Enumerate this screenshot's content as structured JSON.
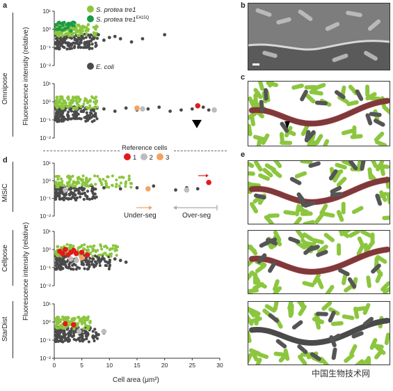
{
  "panels": {
    "a": "a",
    "b": "b",
    "c": "c",
    "d": "d",
    "e": "e"
  },
  "row_labels": {
    "omnipose": "Omnipose",
    "misic": "MiSiC",
    "cellpose": "Cellpose",
    "stardist": "StarDist"
  },
  "y_axis_label": "Fluorescence intensity (relative)",
  "x_axis_label": "Cell area (μm²)",
  "x_ticks": [
    "0",
    "5",
    "10",
    "15",
    "20",
    "25",
    "30"
  ],
  "y_ticks": [
    "10¹",
    "10⁰",
    "10⁻¹",
    "10⁻²"
  ],
  "legend": {
    "item1": "S. protea tre1",
    "item2": "S. protea tre1",
    "item2_sup": "E415Q",
    "item3": "E. coli",
    "colors": {
      "tre1": "#8cc63f",
      "tre1_mut": "#1a9a4a",
      "ecoli": "#4a4a4a"
    }
  },
  "reference_cells": {
    "title": "Reference cells",
    "labels": [
      "1",
      "2",
      "3"
    ],
    "colors": [
      "#e31a1c",
      "#bdbdbd",
      "#f4a261"
    ]
  },
  "annotations": {
    "under_seg": "Under-seg",
    "over_seg": "Over-seg"
  },
  "watermark": "中国生物技术网",
  "chart_data": [
    {
      "type": "scatter",
      "panel": "a-top",
      "xlabel": "",
      "ylabel": "Fluorescence intensity (relative)",
      "xlim": [
        0,
        30
      ],
      "ylim": [
        0.01,
        10
      ],
      "yscale": "log",
      "series": [
        {
          "name": "S. protea tre1",
          "x": [
            0.5,
            1,
            1.5,
            2,
            2.5,
            3,
            3.5,
            4
          ],
          "y": [
            1.2,
            1.5,
            1.1,
            1.3,
            1.0,
            1.2,
            1.1,
            0.9
          ]
        },
        {
          "name": "S. protea tre1E415Q",
          "x": [
            0.5,
            1,
            1.5,
            2,
            2.5,
            3
          ],
          "y": [
            1.0,
            1.3,
            0.9,
            1.1,
            1.2,
            0.8
          ]
        },
        {
          "name": "E. coli",
          "x": [
            1,
            2,
            3,
            4,
            5,
            6,
            7,
            8,
            9,
            10,
            11,
            12,
            14,
            16,
            20
          ],
          "y": [
            0.2,
            0.3,
            0.15,
            0.25,
            0.4,
            0.2,
            0.3,
            0.5,
            0.25,
            0.35,
            0.4,
            0.3,
            0.2,
            0.3,
            0.5
          ]
        }
      ]
    },
    {
      "type": "scatter",
      "panel": "a-bottom",
      "xlim": [
        0,
        30
      ],
      "ylim": [
        0.01,
        10
      ],
      "yscale": "log",
      "series": [
        {
          "name": "E. coli",
          "x": [
            1,
            3,
            5,
            7,
            9,
            11,
            13,
            15,
            17,
            19,
            21,
            23,
            25,
            27,
            28,
            29
          ],
          "y": [
            0.3,
            0.4,
            0.3,
            0.35,
            0.4,
            0.3,
            0.45,
            0.35,
            0.4,
            0.5,
            0.3,
            0.35,
            0.4,
            0.5,
            0.35,
            0.4
          ]
        },
        {
          "name": "Reference 1",
          "x": [
            26
          ],
          "y": [
            0.6
          ]
        },
        {
          "name": "Reference 2",
          "x": [
            16,
            29
          ],
          "y": [
            0.4,
            0.35
          ]
        },
        {
          "name": "Reference 3",
          "x": [
            15
          ],
          "y": [
            0.45
          ]
        }
      ]
    },
    {
      "type": "scatter",
      "panel": "d-misic",
      "xlim": [
        0,
        30
      ],
      "ylim": [
        0.01,
        10
      ],
      "yscale": "log",
      "series": [
        {
          "name": "E. coli",
          "x": [
            1,
            3,
            5,
            7,
            9,
            12,
            15,
            18,
            22,
            24,
            26
          ],
          "y": [
            0.3,
            0.35,
            0.4,
            0.3,
            0.4,
            0.35,
            0.4,
            0.5,
            0.3,
            0.4,
            0.35
          ]
        },
        {
          "name": "Reference 1",
          "x": [
            28
          ],
          "y": [
            0.8
          ]
        },
        {
          "name": "Reference 2",
          "x": [
            2,
            24
          ],
          "y": [
            0.3,
            0.3
          ]
        },
        {
          "name": "Reference 3",
          "x": [
            17
          ],
          "y": [
            0.35
          ]
        }
      ]
    },
    {
      "type": "scatter",
      "panel": "d-cellpose",
      "xlim": [
        0,
        30
      ],
      "ylim": [
        0.01,
        10
      ],
      "yscale": "log",
      "series": [
        {
          "name": "E. coli",
          "x": [
            1,
            2,
            3,
            4,
            5,
            6,
            7,
            8,
            9,
            10,
            11,
            12,
            13
          ],
          "y": [
            0.3,
            0.4,
            0.2,
            0.3,
            0.35,
            0.2,
            0.3,
            0.25,
            0.3,
            0.2,
            0.3,
            0.25,
            0.2
          ]
        },
        {
          "name": "Reference 1",
          "x": [
            1,
            1.5,
            2,
            2.5,
            3,
            3.5,
            4,
            5,
            6
          ],
          "y": [
            0.8,
            0.6,
            1.0,
            0.5,
            0.7,
            0.9,
            0.6,
            0.7,
            0.5
          ]
        },
        {
          "name": "Reference 2",
          "x": [
            3,
            4
          ],
          "y": [
            0.3,
            0.25
          ]
        },
        {
          "name": "Reference 3",
          "x": [
            5
          ],
          "y": [
            0.35
          ]
        }
      ]
    },
    {
      "type": "scatter",
      "panel": "d-stardist",
      "xlim": [
        0,
        30
      ],
      "ylim": [
        0.01,
        10
      ],
      "yscale": "log",
      "series": [
        {
          "name": "E. coli",
          "x": [
            1,
            2,
            3,
            4,
            5,
            6,
            7,
            8,
            9
          ],
          "y": [
            0.3,
            0.2,
            0.25,
            0.3,
            0.2,
            0.25,
            0.15,
            0.2,
            0.25
          ]
        },
        {
          "name": "Reference 1",
          "x": [
            2,
            3.5
          ],
          "y": [
            0.8,
            0.7
          ]
        },
        {
          "name": "Reference 2",
          "x": [
            4.5,
            9
          ],
          "y": [
            0.3,
            0.3
          ]
        },
        {
          "name": "Reference 3",
          "x": [],
          "y": []
        }
      ]
    }
  ]
}
